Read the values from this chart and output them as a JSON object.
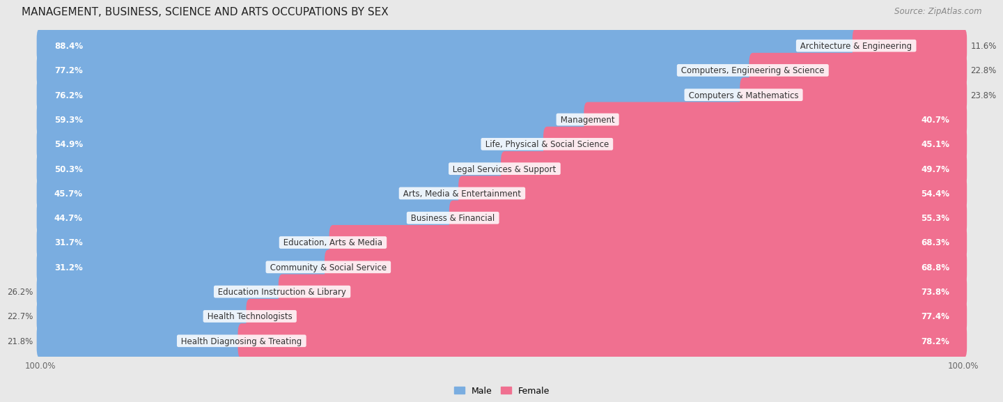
{
  "title": "MANAGEMENT, BUSINESS, SCIENCE AND ARTS OCCUPATIONS BY SEX",
  "source": "Source: ZipAtlas.com",
  "categories": [
    "Architecture & Engineering",
    "Computers, Engineering & Science",
    "Computers & Mathematics",
    "Management",
    "Life, Physical & Social Science",
    "Legal Services & Support",
    "Arts, Media & Entertainment",
    "Business & Financial",
    "Education, Arts & Media",
    "Community & Social Service",
    "Education Instruction & Library",
    "Health Technologists",
    "Health Diagnosing & Treating"
  ],
  "male_pct": [
    88.4,
    77.2,
    76.2,
    59.3,
    54.9,
    50.3,
    45.7,
    44.7,
    31.7,
    31.2,
    26.2,
    22.7,
    21.8
  ],
  "female_pct": [
    11.6,
    22.8,
    23.8,
    40.7,
    45.1,
    49.7,
    54.4,
    55.3,
    68.3,
    68.8,
    73.8,
    77.4,
    78.2
  ],
  "male_color": "#7aade0",
  "female_color": "#f07090",
  "bg_color": "#e8e8e8",
  "row_bg_odd": "#f5f5f5",
  "row_bg_even": "#ececec",
  "label_white": "#ffffff",
  "label_dark": "#555555",
  "title_fontsize": 11,
  "source_fontsize": 8.5,
  "bar_label_fontsize": 8.5,
  "category_fontsize": 8.5,
  "legend_fontsize": 9,
  "axis_label_fontsize": 8.5,
  "male_inside_threshold": 28,
  "female_inside_threshold": 28
}
